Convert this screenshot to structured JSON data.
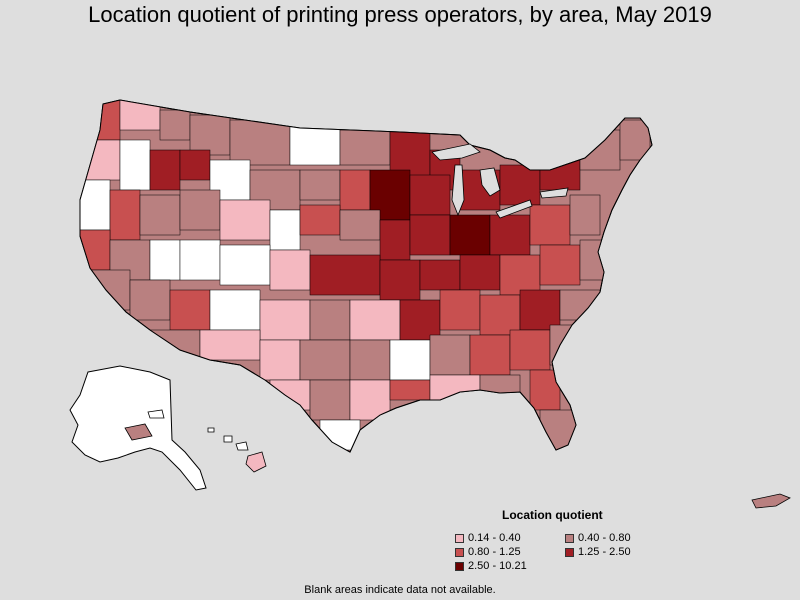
{
  "title": "Location quotient of printing press operators, by area, May 2019",
  "legend": {
    "title": "Location quotient",
    "items": [
      {
        "label": "0.14 - 0.40",
        "color": "#f4b8c0"
      },
      {
        "label": "0.40 - 0.80",
        "color": "#b98080"
      },
      {
        "label": "0.80 - 1.25",
        "color": "#c85050"
      },
      {
        "label": "1.25 - 2.50",
        "color": "#a01e24"
      },
      {
        "label": "2.50 - 10.21",
        "color": "#6a0000"
      }
    ]
  },
  "footnote": "Blank areas indicate data not available.",
  "colors": {
    "background": "#dedede",
    "blank": "#ffffff",
    "border": "#000000"
  }
}
